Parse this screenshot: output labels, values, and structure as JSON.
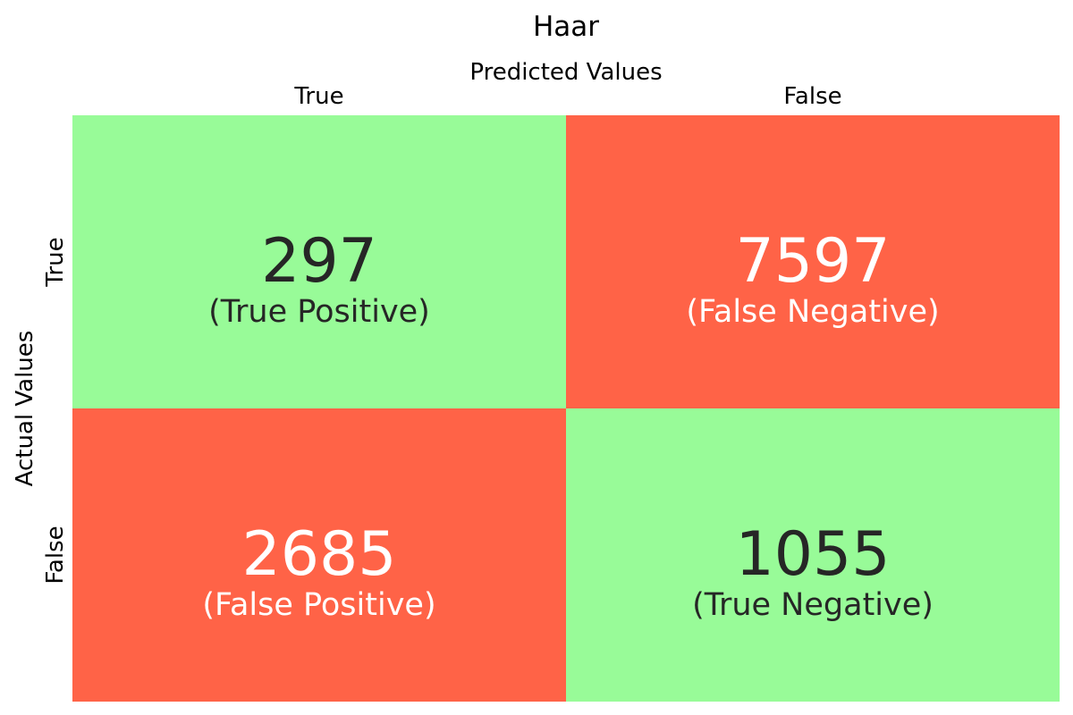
{
  "chart_data": {
    "type": "heatmap",
    "title": "Haar",
    "xlabel": "Predicted Values",
    "ylabel": "Actual Values",
    "x_categories": [
      "True",
      "False"
    ],
    "y_categories": [
      "True",
      "False"
    ],
    "cells": [
      {
        "actual": "True",
        "predicted": "True",
        "value": "297",
        "label": "(True Positive)",
        "fill": "#98FB98",
        "text_color": "#262626"
      },
      {
        "actual": "True",
        "predicted": "False",
        "value": "7597",
        "label": "(False Negative)",
        "fill": "#FF6347",
        "text_color": "#FFFFFF"
      },
      {
        "actual": "False",
        "predicted": "True",
        "value": "2685",
        "label": "(False Positive)",
        "fill": "#FF6347",
        "text_color": "#FFFFFF"
      },
      {
        "actual": "False",
        "predicted": "False",
        "value": "1055",
        "label": "(True Negative)",
        "fill": "#98FB98",
        "text_color": "#262626"
      }
    ]
  }
}
